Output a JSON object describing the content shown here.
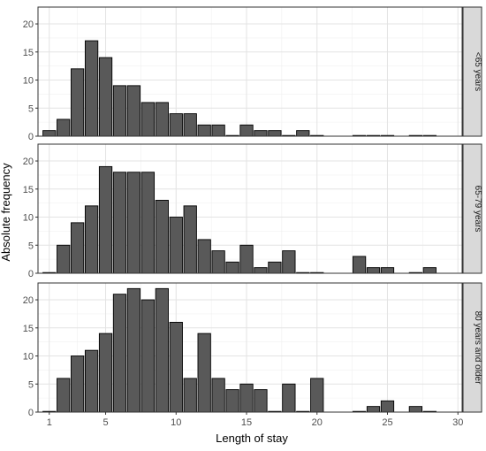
{
  "chart_data": {
    "type": "bar",
    "xlabel": "Length of stay",
    "ylabel": "Absolute frequency",
    "xlim": [
      0.2,
      30.3
    ],
    "ylim": [
      0,
      23
    ],
    "x_ticks": [
      1,
      5,
      10,
      15,
      20,
      25,
      30
    ],
    "y_ticks": [
      0,
      5,
      10,
      15,
      20
    ],
    "grid": true,
    "bar_fill": "#595959",
    "bar_stroke": "#000000",
    "strip_fill": "#d9d9d9",
    "panels": [
      {
        "label": "<65 years",
        "x": [
          1,
          2,
          3,
          4,
          5,
          6,
          7,
          8,
          9,
          10,
          11,
          12,
          13,
          14,
          15,
          16,
          17,
          18,
          19,
          20,
          23,
          24,
          25,
          27,
          28
        ],
        "values": [
          1,
          3,
          12,
          17,
          14,
          9,
          9,
          6,
          6,
          4,
          4,
          2,
          2,
          0,
          2,
          1,
          1,
          0,
          1,
          0,
          0,
          0,
          0,
          0,
          0
        ]
      },
      {
        "label": "65-79 years",
        "x": [
          1,
          2,
          3,
          4,
          5,
          6,
          7,
          8,
          9,
          10,
          11,
          12,
          13,
          14,
          15,
          16,
          17,
          18,
          19,
          20,
          23,
          24,
          25,
          27,
          28
        ],
        "values": [
          0,
          5,
          9,
          12,
          19,
          18,
          18,
          18,
          13,
          10,
          12,
          6,
          4,
          2,
          5,
          1,
          2,
          4,
          0,
          0,
          3,
          1,
          1,
          0,
          1
        ]
      },
      {
        "label": "80 years and older",
        "x": [
          1,
          2,
          3,
          4,
          5,
          6,
          7,
          8,
          9,
          10,
          11,
          12,
          13,
          14,
          15,
          16,
          17,
          18,
          19,
          20,
          23,
          24,
          25,
          27,
          28
        ],
        "values": [
          0,
          6,
          10,
          11,
          14,
          21,
          22,
          20,
          22,
          16,
          6,
          14,
          6,
          4,
          5,
          4,
          0,
          5,
          0,
          6,
          0,
          1,
          2,
          1,
          0
        ]
      }
    ]
  }
}
